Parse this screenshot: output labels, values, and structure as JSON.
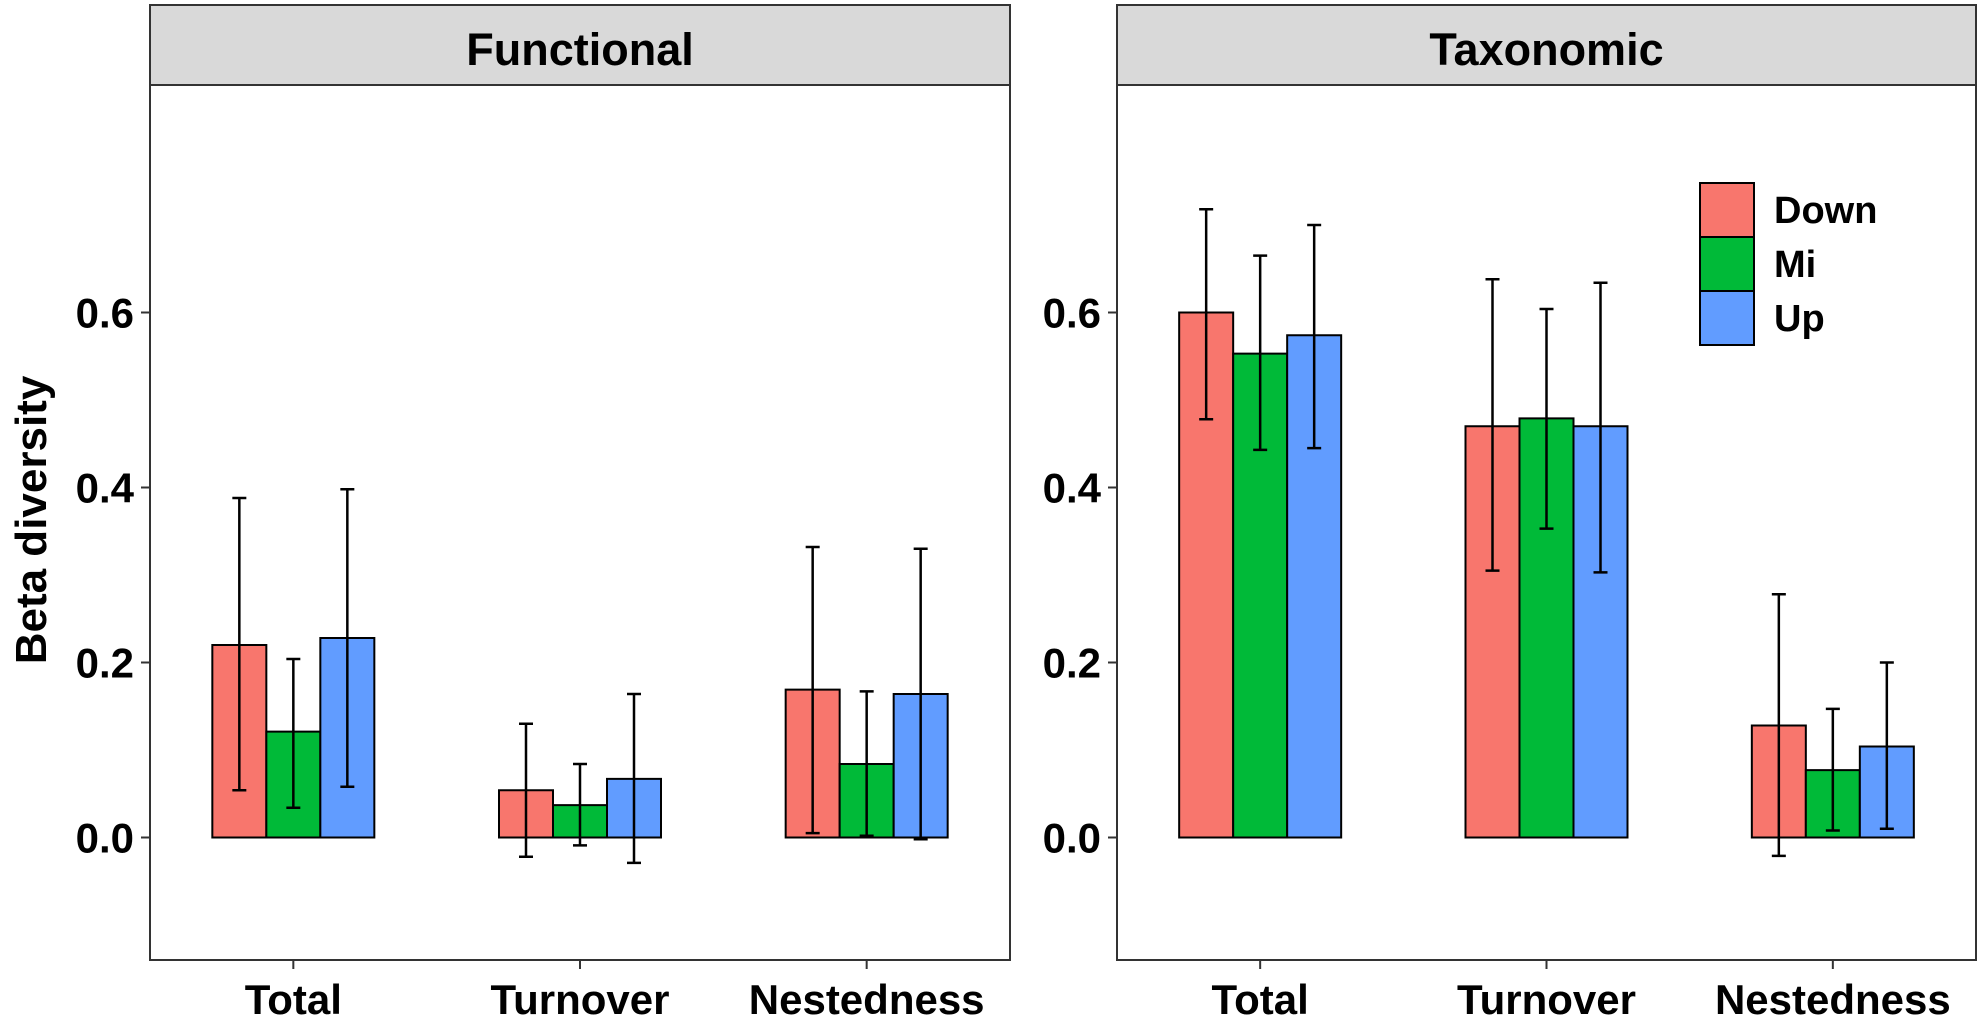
{
  "chart_data": {
    "type": "bar",
    "ylabel": "Beta diversity",
    "ylim": [
      -0.14,
      0.86
    ],
    "yticks": [
      "0.0",
      "0.2",
      "0.4",
      "0.6"
    ],
    "ytick_values": [
      0,
      0.2,
      0.4,
      0.6
    ],
    "categories": [
      "Total",
      "Turnover",
      "Nestedness"
    ],
    "legend": {
      "placement": "top-right",
      "entries": [
        {
          "name": "Down",
          "color": "#F8766D"
        },
        {
          "name": "Mi",
          "color": "#00BA38"
        },
        {
          "name": "Up",
          "color": "#619CFF"
        }
      ]
    },
    "panels": [
      {
        "title": "Functional",
        "series": [
          {
            "name": "Down",
            "values": [
              0.22,
              0.054,
              0.169
            ],
            "errors": [
              [
                0.054,
                0.388
              ],
              [
                -0.022,
                0.13
              ],
              [
                0.005,
                0.332
              ]
            ]
          },
          {
            "name": "Mi",
            "values": [
              0.121,
              0.037,
              0.084
            ],
            "errors": [
              [
                0.034,
                0.204
              ],
              [
                -0.009,
                0.084
              ],
              [
                0.002,
                0.167
              ]
            ]
          },
          {
            "name": "Up",
            "values": [
              0.228,
              0.067,
              0.164
            ],
            "errors": [
              [
                0.058,
                0.398
              ],
              [
                -0.029,
                0.164
              ],
              [
                -0.002,
                0.33
              ]
            ]
          }
        ]
      },
      {
        "title": "Taxonomic",
        "series": [
          {
            "name": "Down",
            "values": [
              0.6,
              0.47,
              0.128
            ],
            "errors": [
              [
                0.478,
                0.718
              ],
              [
                0.305,
                0.638
              ],
              [
                -0.021,
                0.278
              ]
            ]
          },
          {
            "name": "Mi",
            "values": [
              0.553,
              0.479,
              0.077
            ],
            "errors": [
              [
                0.443,
                0.665
              ],
              [
                0.353,
                0.604
              ],
              [
                0.008,
                0.147
              ]
            ]
          },
          {
            "name": "Up",
            "values": [
              0.574,
              0.47,
              0.104
            ],
            "errors": [
              [
                0.445,
                0.7
              ],
              [
                0.303,
                0.634
              ],
              [
                0.01,
                0.2
              ]
            ]
          }
        ]
      }
    ]
  }
}
